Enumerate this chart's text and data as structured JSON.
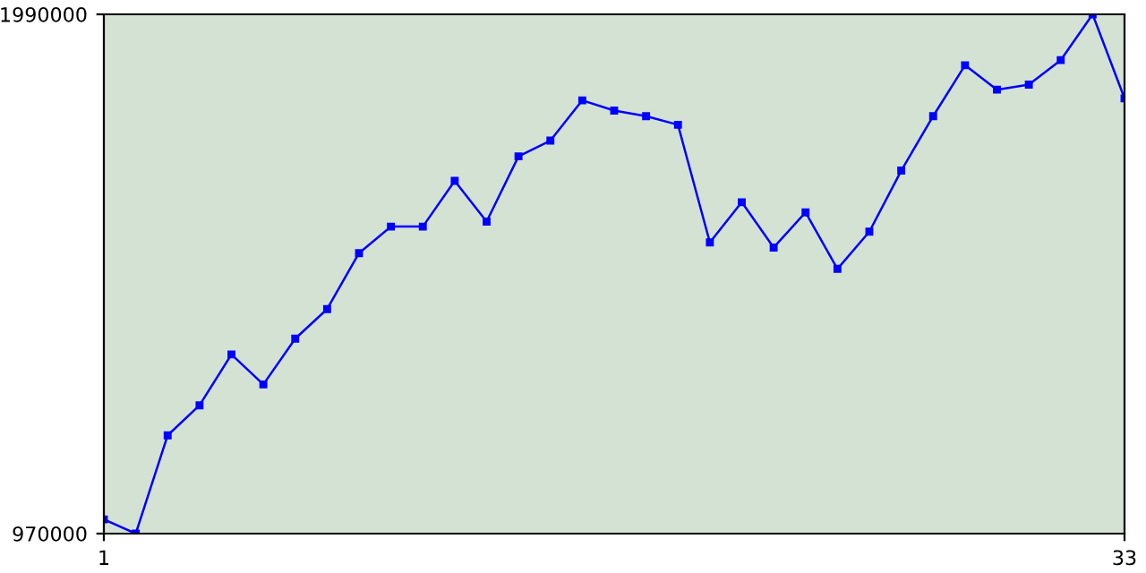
{
  "chart_data": {
    "type": "line",
    "x": [
      1,
      2,
      3,
      4,
      5,
      6,
      7,
      8,
      9,
      10,
      11,
      12,
      13,
      14,
      15,
      16,
      17,
      18,
      19,
      20,
      21,
      22,
      23,
      24,
      25,
      26,
      27,
      28,
      29,
      30,
      31,
      32,
      33
    ],
    "series": [
      {
        "color": "#0000ff",
        "values": [
          998000,
          970000,
          1163000,
          1222000,
          1322000,
          1263000,
          1353000,
          1411000,
          1521000,
          1573000,
          1573000,
          1663000,
          1583000,
          1711000,
          1742000,
          1821000,
          1801000,
          1790000,
          1773000,
          1542000,
          1621000,
          1532000,
          1601000,
          1490000,
          1563000,
          1683000,
          1790000,
          1890000,
          1842000,
          1852000,
          1900000,
          1990000,
          1825000
        ]
      }
    ],
    "xlim": [
      1,
      33
    ],
    "xticks": [
      1,
      33
    ],
    "ylim": [
      970000,
      1990000
    ],
    "yticks": [
      970000,
      1990000
    ],
    "marker": "square",
    "grid": false
  }
}
